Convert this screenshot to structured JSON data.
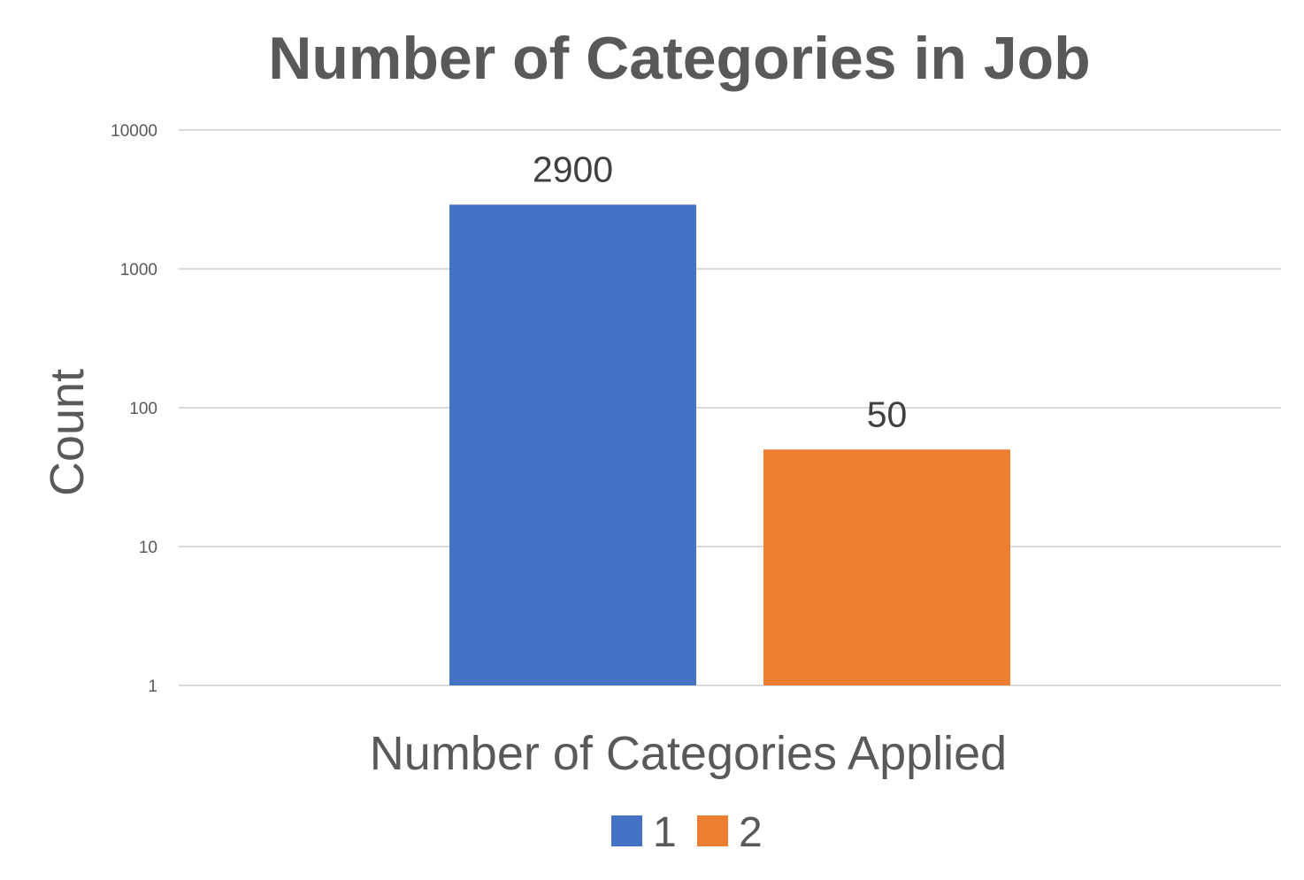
{
  "chart_data": {
    "type": "bar",
    "title": "Number of Categories in Job",
    "xlabel": "Number of Categories Applied",
    "ylabel": "Count",
    "categories": [
      ""
    ],
    "series": [
      {
        "name": "1",
        "values": [
          2900
        ],
        "color": "#4472C4"
      },
      {
        "name": "2",
        "values": [
          50
        ],
        "color": "#ED7D31"
      }
    ],
    "y_scale": "log",
    "ylim": [
      1,
      10000
    ],
    "y_ticks": [
      1,
      10,
      100,
      1000,
      10000
    ],
    "y_tick_labels": [
      "1",
      "10",
      "100",
      "1000",
      "10000"
    ],
    "data_labels": [
      "2900",
      "50"
    ],
    "grid": true,
    "grid_color": "#D9D9D9",
    "legend_position": "bottom"
  }
}
